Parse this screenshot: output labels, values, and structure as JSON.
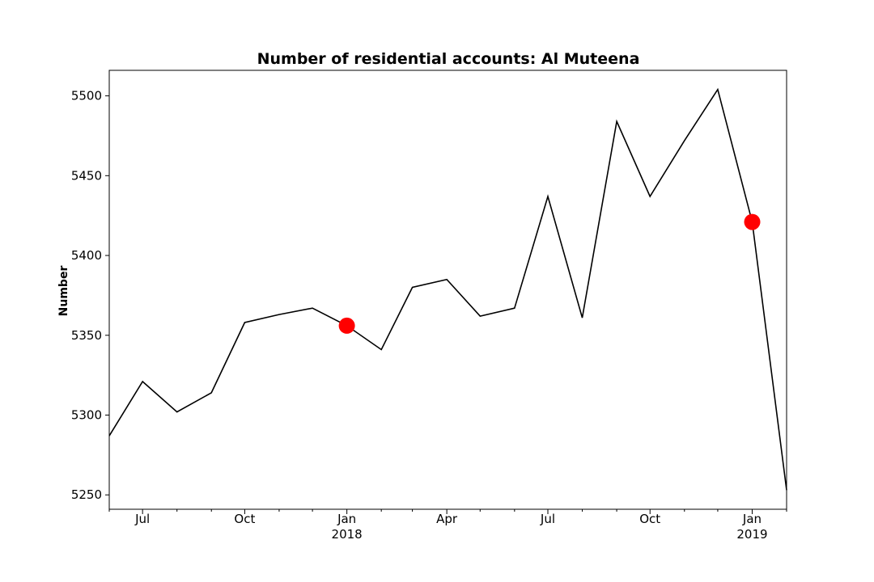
{
  "chart_data": {
    "type": "line",
    "title": "Number of residential accounts: Al Muteena",
    "xlabel": "",
    "ylabel": "Number",
    "xlim": [
      "2017-06-01",
      "2019-02-01"
    ],
    "ylim": [
      5241,
      5516
    ],
    "grid": false,
    "line_color": "#000000",
    "marker_color": "#ff0000",
    "x_ticks": [
      {
        "date": "2017-07-01",
        "label": "Jul",
        "year": ""
      },
      {
        "date": "2017-10-01",
        "label": "Oct",
        "year": ""
      },
      {
        "date": "2018-01-01",
        "label": "Jan",
        "year": "2018"
      },
      {
        "date": "2018-04-01",
        "label": "Apr",
        "year": ""
      },
      {
        "date": "2018-07-01",
        "label": "Jul",
        "year": ""
      },
      {
        "date": "2018-10-01",
        "label": "Oct",
        "year": ""
      },
      {
        "date": "2019-01-01",
        "label": "Jan",
        "year": "2019"
      }
    ],
    "y_ticks": [
      {
        "value": 5250,
        "label": "5250"
      },
      {
        "value": 5300,
        "label": "5300"
      },
      {
        "value": 5350,
        "label": "5350"
      },
      {
        "value": 5400,
        "label": "5400"
      },
      {
        "value": 5450,
        "label": "5450"
      },
      {
        "value": 5500,
        "label": "5500"
      }
    ],
    "series": [
      {
        "x": [
          "2017-06-01",
          "2017-07-01",
          "2017-08-01",
          "2017-09-01",
          "2017-10-01",
          "2017-11-01",
          "2017-12-01",
          "2018-01-01",
          "2018-02-01",
          "2018-03-01",
          "2018-04-01",
          "2018-05-01",
          "2018-06-01",
          "2018-07-01",
          "2018-08-01",
          "2018-09-01",
          "2018-10-01",
          "2018-11-01",
          "2018-12-01",
          "2019-01-01",
          "2019-02-01"
        ],
        "values": [
          5287,
          5321,
          5302,
          5314,
          5358,
          5363,
          5367,
          5356,
          5341,
          5380,
          5385,
          5362,
          5367,
          5437,
          5361,
          5484,
          5437,
          5472,
          5504,
          5421,
          5253
        ]
      }
    ],
    "markers": [
      {
        "x": "2018-01-01",
        "value": 5356
      },
      {
        "x": "2019-01-01",
        "value": 5421
      }
    ]
  }
}
